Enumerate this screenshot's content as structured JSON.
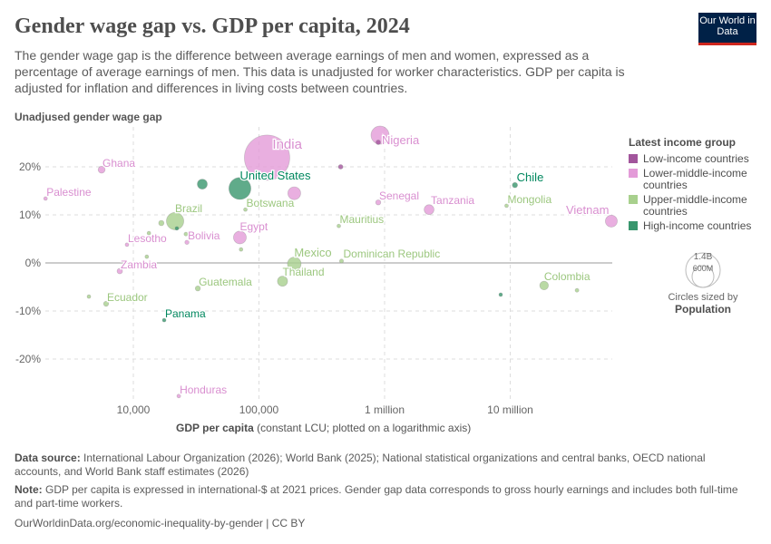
{
  "header": {
    "title": "Gender wage gap vs. GDP per capita, 2024",
    "subtitle": "The gender wage gap is the difference between average earnings of men and women, expressed as a percentage of average earnings of men. This data is unadjusted for worker characteristics. GDP per capita is adjusted for inflation and differences in living costs between countries.",
    "logo": "Our World in Data"
  },
  "legend": {
    "title": "Latest income group",
    "items": [
      {
        "label": "Low-income countries",
        "color": "#a2559c"
      },
      {
        "label": "Lower-middle-income countries",
        "color": "#e39bd8"
      },
      {
        "label": "Upper-middle-income countries",
        "color": "#a8d08d"
      },
      {
        "label": "High-income countries",
        "color": "#38966d"
      }
    ],
    "size_title": "Circles sized by",
    "size_var": "Population",
    "size_big": "1.4B",
    "size_small": "600M"
  },
  "footer": {
    "source_label": "Data source:",
    "source": "International Labour Organization (2026); World Bank (2025); National statistical organizations and central banks, OECD national accounts, and World Bank staff estimates (2026)",
    "note_label": "Note:",
    "note": "GDP per capita is expressed in international-$ at 2021 prices. Gender gap data corresponds to gross hourly earnings and includes both full-time and part-time workers.",
    "url": "OurWorldinData.org/economic-inequality-by-gender | CC BY"
  },
  "chart_data": {
    "type": "scatter",
    "title": "Gender wage gap vs. GDP per capita, 2024",
    "ylabel": "Unadjused gender wage gap",
    "xlabel": "GDP per capita",
    "xlabel_note": "(constant LCU; plotted on a logarithmic axis)",
    "xscale": "log",
    "xlim": [
      2000,
      66000000
    ],
    "ylim": [
      -30,
      29
    ],
    "xticks": [
      {
        "v": 10000,
        "label": "10,000"
      },
      {
        "v": 100000,
        "label": "100,000"
      },
      {
        "v": 1000000,
        "label": "1 million"
      },
      {
        "v": 10000000,
        "label": "10 million"
      }
    ],
    "yticks": [
      {
        "v": 20,
        "label": "20%"
      },
      {
        "v": 10,
        "label": "10%"
      },
      {
        "v": 0,
        "label": "0%"
      },
      {
        "v": -10,
        "label": "-10%"
      },
      {
        "v": -20,
        "label": "-20%"
      }
    ],
    "grid": true,
    "legend_position": "right",
    "points": [
      {
        "name": "India",
        "x": 116000,
        "y": 21.9,
        "group": "Lower-middle-income countries",
        "pop": 1440000000
      },
      {
        "name": "Nigeria",
        "x": 920000,
        "y": 26.6,
        "group": "Lower-middle-income countries",
        "pop": 230000000
      },
      {
        "name": "",
        "x": 890000,
        "y": 25.1,
        "group": "Low-income countries",
        "pop": 15000000
      },
      {
        "name": "",
        "x": 447000,
        "y": 20.0,
        "group": "Low-income countries",
        "pop": 15000000
      },
      {
        "name": "Ghana",
        "x": 5590,
        "y": 19.4,
        "group": "Lower-middle-income countries",
        "pop": 34000000
      },
      {
        "name": "Palestine",
        "x": 2000,
        "y": 13.4,
        "group": "Lower-middle-income countries",
        "pop": 5000000
      },
      {
        "name": "United States",
        "x": 70500,
        "y": 15.5,
        "group": "High-income countries",
        "pop": 340000000
      },
      {
        "name": "",
        "x": 35400,
        "y": 16.4,
        "group": "High-income countries",
        "pop": 70000000
      },
      {
        "name": "",
        "x": 191000,
        "y": 14.5,
        "group": "Lower-middle-income countries",
        "pop": 115000000
      },
      {
        "name": "Botswana",
        "x": 78000,
        "y": 11.1,
        "group": "Upper-middle-income countries",
        "pop": 2600000
      },
      {
        "name": "Brazil",
        "x": 21500,
        "y": 8.7,
        "group": "Upper-middle-income countries",
        "pop": 212000000
      },
      {
        "name": "",
        "x": 16700,
        "y": 8.3,
        "group": "Upper-middle-income countries",
        "pop": 20000000
      },
      {
        "name": "",
        "x": 22200,
        "y": 7.2,
        "group": "High-income countries",
        "pop": 5000000
      },
      {
        "name": "",
        "x": 13300,
        "y": 6.2,
        "group": "Upper-middle-income countries",
        "pop": 5000000
      },
      {
        "name": "",
        "x": 26200,
        "y": 6.0,
        "group": "Upper-middle-income countries",
        "pop": 10000000
      },
      {
        "name": "Lesotho",
        "x": 8900,
        "y": 3.8,
        "group": "Lower-middle-income countries",
        "pop": 2300000
      },
      {
        "name": "Bolivia",
        "x": 26700,
        "y": 4.3,
        "group": "Lower-middle-income countries",
        "pop": 12000000
      },
      {
        "name": "Egypt",
        "x": 70500,
        "y": 5.3,
        "group": "Lower-middle-income countries",
        "pop": 115000000
      },
      {
        "name": "",
        "x": 72000,
        "y": 2.8,
        "group": "Upper-middle-income countries",
        "pop": 7000000
      },
      {
        "name": "",
        "x": 12800,
        "y": 1.3,
        "group": "Upper-middle-income countries",
        "pop": 7000000
      },
      {
        "name": "Zambia",
        "x": 7800,
        "y": -1.7,
        "group": "Lower-middle-income countries",
        "pop": 21000000
      },
      {
        "name": "Mexico",
        "x": 191000,
        "y": -0.2,
        "group": "Upper-middle-income countries",
        "pop": 130000000
      },
      {
        "name": "Thailand",
        "x": 154000,
        "y": -3.8,
        "group": "Upper-middle-income countries",
        "pop": 72000000
      },
      {
        "name": "Guatemala",
        "x": 32600,
        "y": -5.3,
        "group": "Upper-middle-income countries",
        "pop": 18000000
      },
      {
        "name": "",
        "x": 4430,
        "y": -7.0,
        "group": "Upper-middle-income countries",
        "pop": 7000000
      },
      {
        "name": "Ecuador",
        "x": 6070,
        "y": -8.5,
        "group": "Upper-middle-income countries",
        "pop": 18000000
      },
      {
        "name": "Panama",
        "x": 17600,
        "y": -11.9,
        "group": "High-income countries",
        "pop": 4500000
      },
      {
        "name": "Honduras",
        "x": 23000,
        "y": -27.7,
        "group": "Lower-middle-income countries",
        "pop": 10000000
      },
      {
        "name": "Mauritius",
        "x": 432000,
        "y": 7.7,
        "group": "Upper-middle-income countries",
        "pop": 1300000
      },
      {
        "name": "Dominican Republic",
        "x": 454000,
        "y": 0.4,
        "group": "Upper-middle-income countries",
        "pop": 11000000
      },
      {
        "name": "Senegal",
        "x": 890000,
        "y": 12.6,
        "group": "Lower-middle-income countries",
        "pop": 18000000
      },
      {
        "name": "Tanzania",
        "x": 2260000,
        "y": 11.1,
        "group": "Lower-middle-income countries",
        "pop": 68000000
      },
      {
        "name": "Chile",
        "x": 10900000,
        "y": 16.2,
        "group": "High-income countries",
        "pop": 19600000
      },
      {
        "name": "Mongolia",
        "x": 9350000,
        "y": 11.9,
        "group": "Upper-middle-income countries",
        "pop": 3500000
      },
      {
        "name": "Vietnam",
        "x": 63800000,
        "y": 8.7,
        "group": "Lower-middle-income countries",
        "pop": 100000000
      },
      {
        "name": "Colombia",
        "x": 18600000,
        "y": -4.7,
        "group": "Upper-middle-income countries",
        "pop": 53000000
      },
      {
        "name": "",
        "x": 8400000,
        "y": -6.6,
        "group": "High-income countries",
        "pop": 5000000
      },
      {
        "name": "",
        "x": 34000000,
        "y": -5.7,
        "group": "Upper-middle-income countries",
        "pop": 10000000
      }
    ]
  }
}
